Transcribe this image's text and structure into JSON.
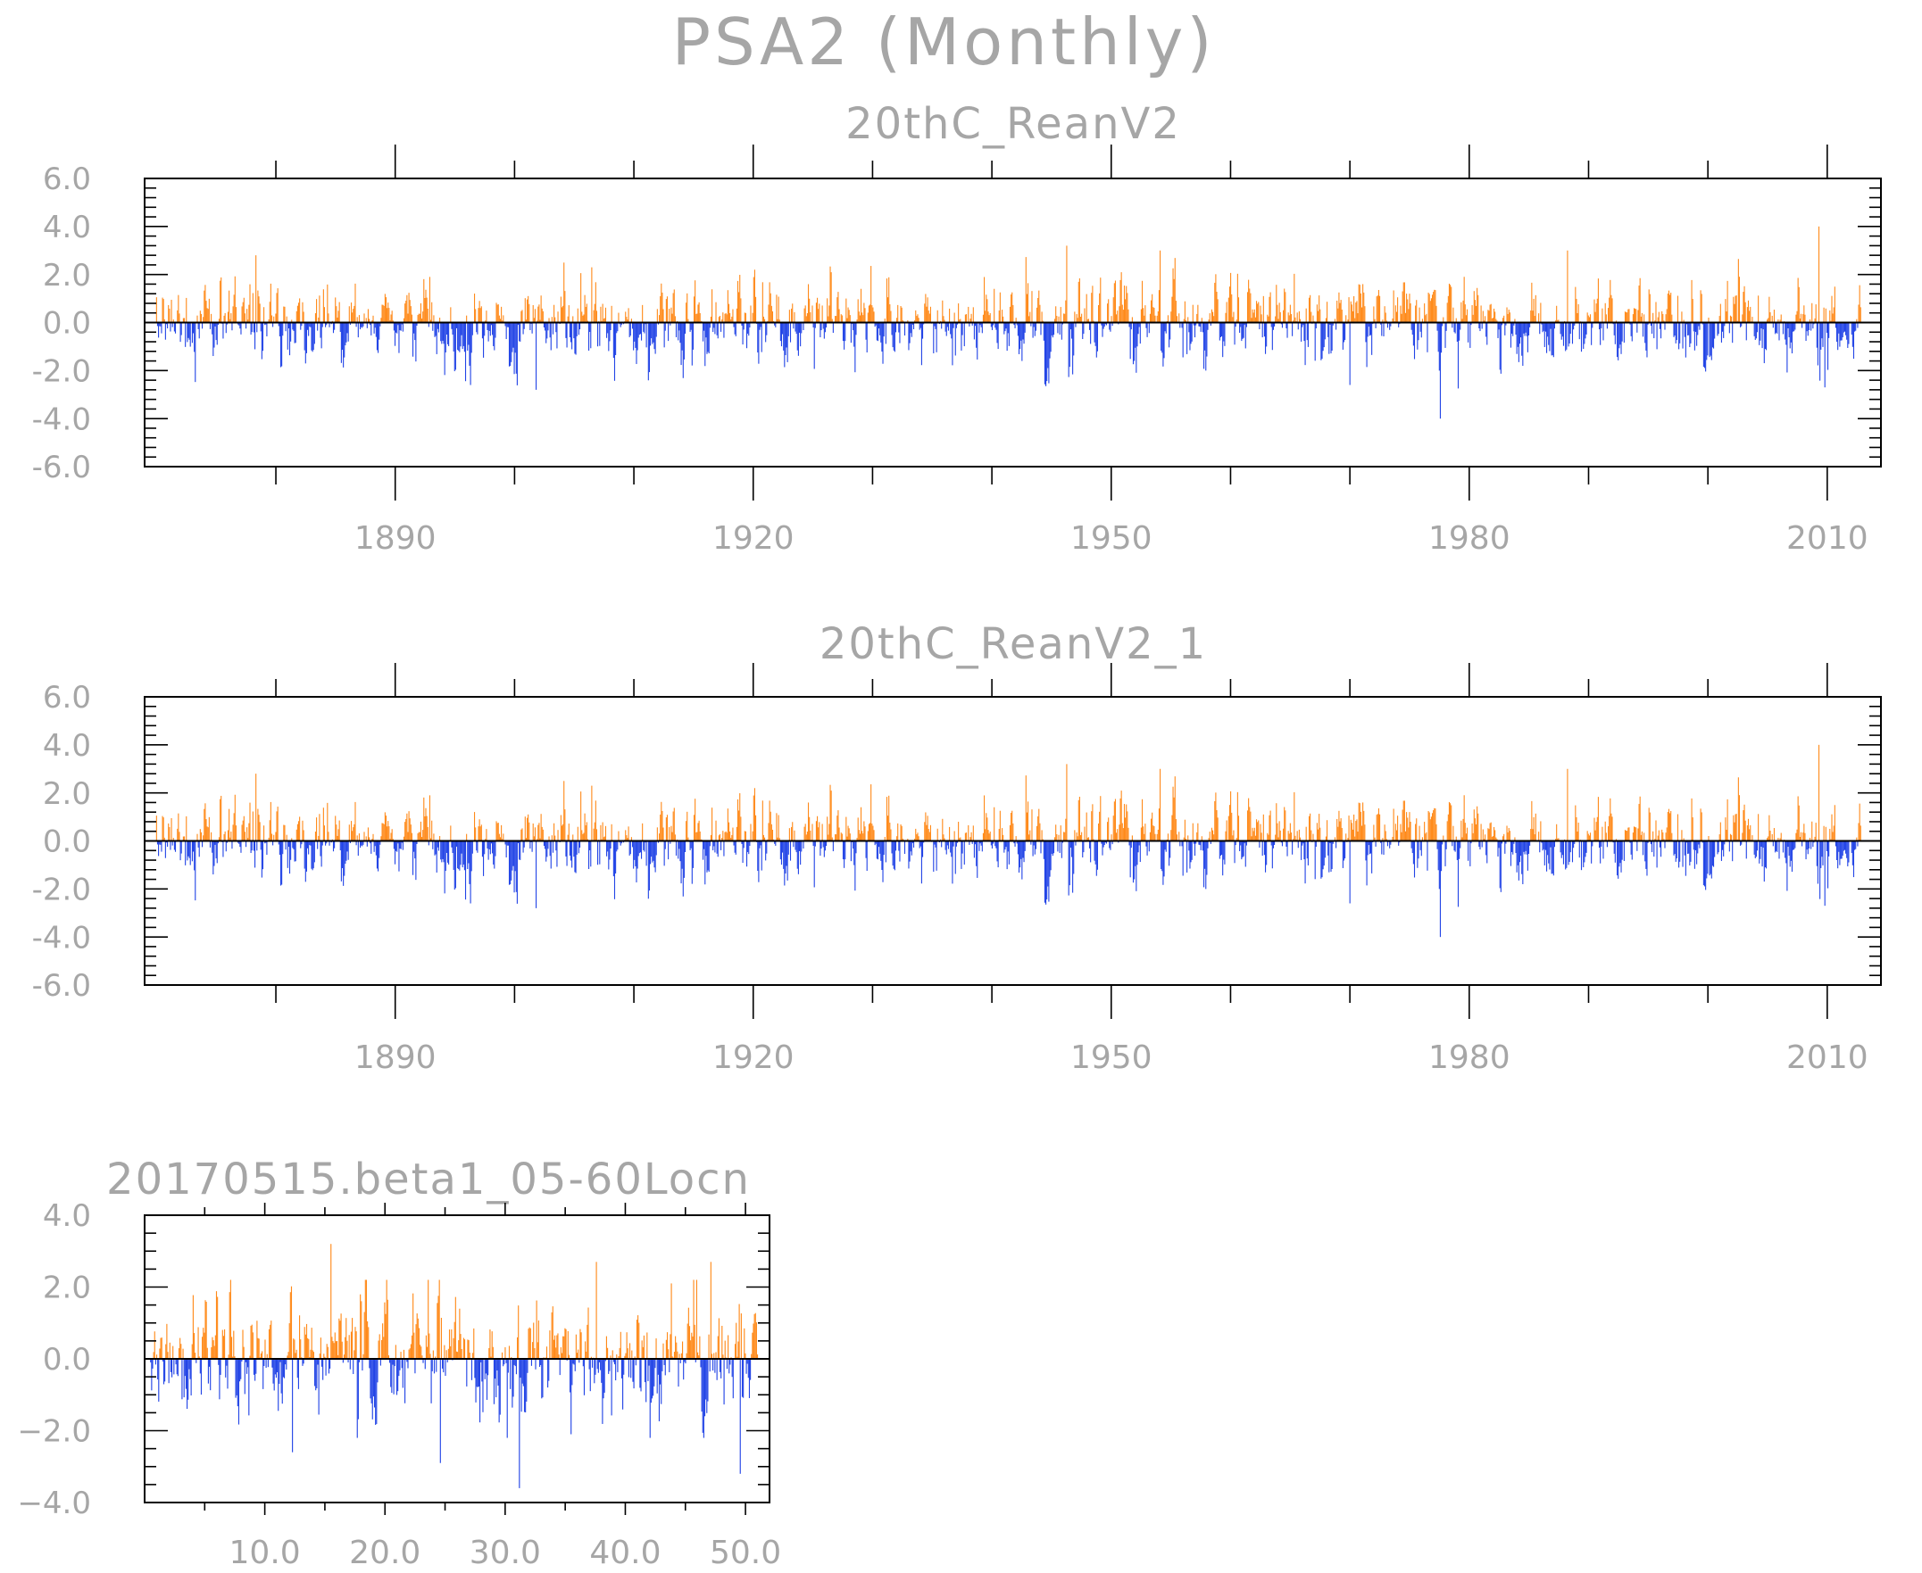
{
  "figure": {
    "title": "PSA2 (Monthly)"
  },
  "colors": {
    "positive": "#ff8a1a",
    "negative": "#2244e6",
    "text": "#a6a6a6",
    "frame": "#000000"
  },
  "chart_data": [
    {
      "type": "bar",
      "title": "20thC_ReanV2",
      "xlabel": "",
      "ylabel": "",
      "x_range": [
        1870,
        2012.8
      ],
      "xlim": [
        1869,
        2014.5
      ],
      "ylim": [
        -6.0,
        6.0
      ],
      "y_ticks": [
        6.0,
        4.0,
        2.0,
        0.0,
        -2.0,
        -4.0,
        -6.0
      ],
      "y_tick_labels": [
        "6.0",
        "4.0",
        "2.0",
        "0.0",
        "-2.0",
        "-4.0",
        "-6.0"
      ],
      "x_ticks": [
        1890,
        1920,
        1950,
        1980,
        2010
      ],
      "x_tick_labels": [
        "1890",
        "1920",
        "1950",
        "1980",
        "2010"
      ],
      "x_minor_ticks": [
        1880,
        1900,
        1910,
        1930,
        1940,
        1960,
        1970,
        1990,
        2000
      ],
      "grid": false,
      "legend": "none",
      "sample_count": 1716,
      "seed": 20,
      "peaks": [
        {
          "x": 1878.3,
          "y": 2.8
        },
        {
          "x": 1892.9,
          "y": 1.9
        },
        {
          "x": 1901.8,
          "y": -2.8
        },
        {
          "x": 1906.5,
          "y": 2.3
        },
        {
          "x": 1954.1,
          "y": 3.0
        },
        {
          "x": 1946.3,
          "y": 3.2
        },
        {
          "x": 1977.6,
          "y": -4.0
        },
        {
          "x": 1988.2,
          "y": 3.0
        },
        {
          "x": 2009.3,
          "y": 4.0
        },
        {
          "x": 2009.8,
          "y": -2.7
        },
        {
          "x": 1970.0,
          "y": -2.6
        }
      ]
    },
    {
      "type": "bar",
      "title": "20thC_ReanV2_1",
      "xlabel": "",
      "ylabel": "",
      "x_range": [
        1870,
        2012.8
      ],
      "xlim": [
        1869,
        2014.5
      ],
      "ylim": [
        -6.0,
        6.0
      ],
      "y_ticks": [
        6.0,
        4.0,
        2.0,
        0.0,
        -2.0,
        -4.0,
        -6.0
      ],
      "y_tick_labels": [
        "6.0",
        "4.0",
        "2.0",
        "0.0",
        "-2.0",
        "-4.0",
        "-6.0"
      ],
      "x_ticks": [
        1890,
        1920,
        1950,
        1980,
        2010
      ],
      "x_tick_labels": [
        "1890",
        "1920",
        "1950",
        "1980",
        "2010"
      ],
      "x_minor_ticks": [
        1880,
        1900,
        1910,
        1930,
        1940,
        1960,
        1970,
        1990,
        2000
      ],
      "grid": false,
      "legend": "none",
      "sample_count": 1716,
      "seed": 20,
      "peaks": [
        {
          "x": 1878.3,
          "y": 2.8
        },
        {
          "x": 1892.9,
          "y": 1.9
        },
        {
          "x": 1901.8,
          "y": -2.8
        },
        {
          "x": 1906.5,
          "y": 2.3
        },
        {
          "x": 1954.1,
          "y": 3.0
        },
        {
          "x": 1946.3,
          "y": 3.2
        },
        {
          "x": 1977.6,
          "y": -4.0
        },
        {
          "x": 1988.2,
          "y": 3.0
        },
        {
          "x": 2009.3,
          "y": 4.0
        },
        {
          "x": 2009.8,
          "y": -2.7
        },
        {
          "x": 1970.0,
          "y": -2.6
        }
      ]
    },
    {
      "type": "bar",
      "title": "20170515.beta1_05-60Locn",
      "xlabel": "",
      "ylabel": "",
      "x_range": [
        0.5,
        51.0
      ],
      "xlim": [
        0,
        52
      ],
      "ylim": [
        -4.0,
        4.0
      ],
      "y_ticks": [
        4.0,
        2.0,
        0.0,
        -2.0,
        -4.0
      ],
      "y_tick_labels": [
        "4.0",
        "2.0",
        "0.0",
        "−2.0",
        "−4.0"
      ],
      "x_ticks": [
        10,
        20,
        30,
        40,
        50
      ],
      "x_tick_labels": [
        "10.0",
        "20.0",
        "30.0",
        "40.0",
        "50.0"
      ],
      "x_minor_ticks": [
        5,
        15,
        25,
        35,
        45
      ],
      "grid": false,
      "legend": "none",
      "sample_count": 600,
      "seed": 77,
      "peaks": [
        {
          "x": 15.5,
          "y": 3.2
        },
        {
          "x": 37.6,
          "y": 2.7
        },
        {
          "x": 47.1,
          "y": 2.7
        },
        {
          "x": 31.2,
          "y": -3.6
        },
        {
          "x": 24.6,
          "y": -2.9
        },
        {
          "x": 12.3,
          "y": -2.6
        },
        {
          "x": 49.6,
          "y": -3.2
        }
      ]
    }
  ]
}
